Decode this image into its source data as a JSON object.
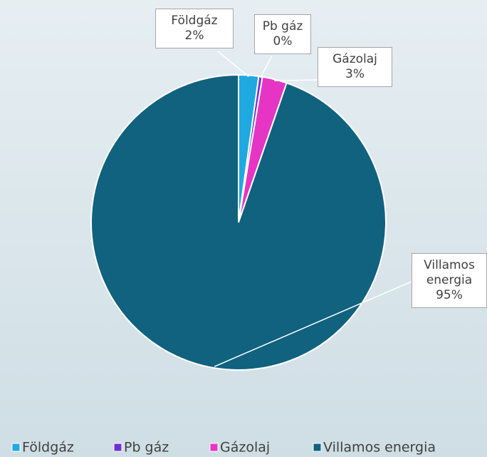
{
  "chart_data": {
    "type": "pie",
    "categories": [
      "Földgáz",
      "Pb gáz",
      "Gázolaj",
      "Villamos energia"
    ],
    "values": [
      2.2,
      0.4,
      2.7,
      94.7
    ],
    "value_labels": [
      "2%",
      "0%",
      "3%",
      "95%"
    ],
    "colors": [
      "#1fa9e1",
      "#7030d0",
      "#e634c4",
      "#10627f"
    ],
    "legend": "bottom"
  }
}
